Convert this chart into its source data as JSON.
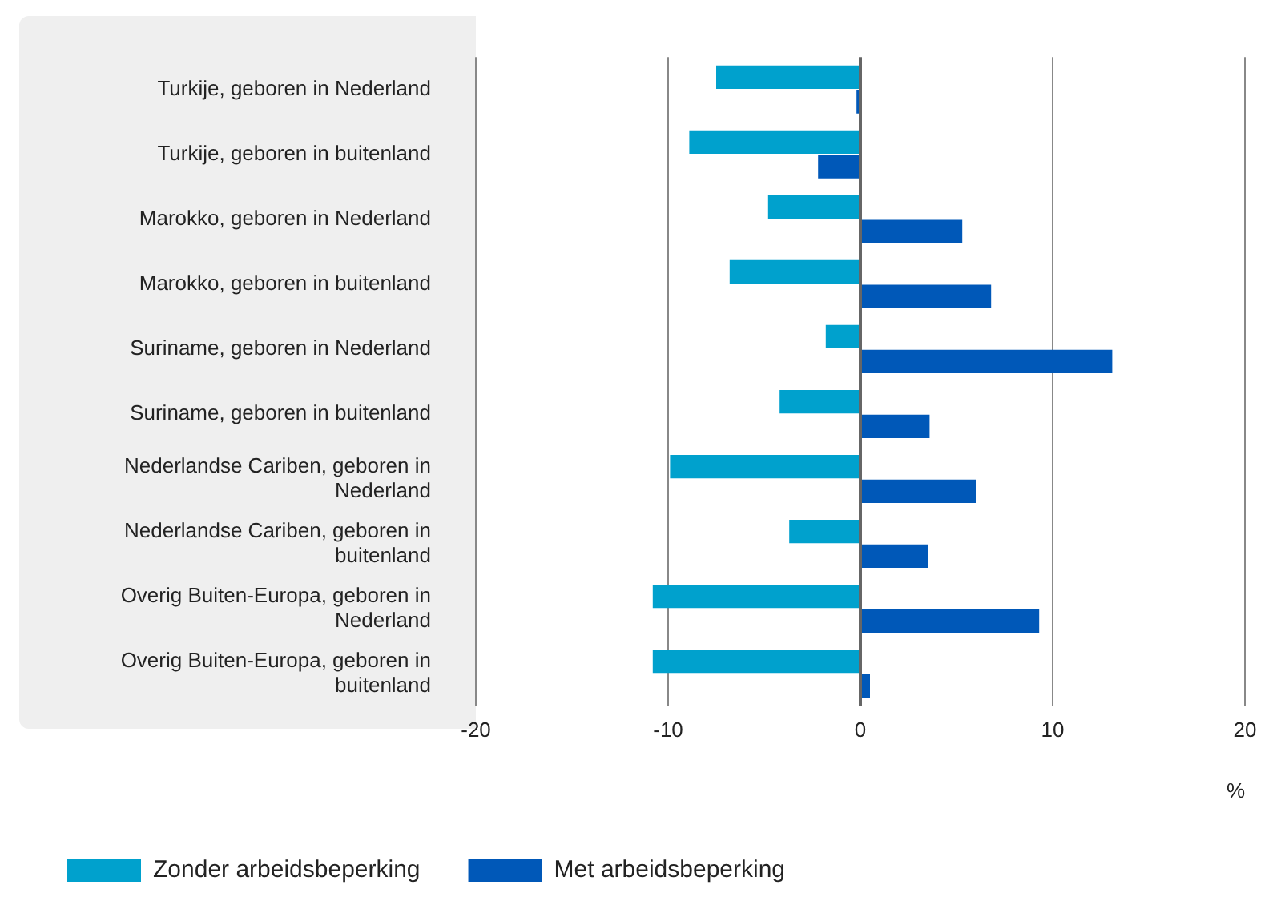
{
  "chart_data": {
    "type": "bar",
    "orientation": "horizontal",
    "xlabel": "%",
    "categories": [
      "Turkije, geboren in Nederland",
      "Turkije, geboren in buitenland",
      "Marokko, geboren in Nederland",
      "Marokko, geboren in buitenland",
      "Suriname, geboren in Nederland",
      "Suriname, geboren in buitenland",
      "Nederlandse Cariben, geboren in Nederland",
      "Nederlandse Cariben, geboren in buitenland",
      "Overig Buiten-Europa, geboren in Nederland",
      "Overig Buiten-Europa, geboren in buitenland"
    ],
    "series": [
      {
        "name": "Zonder arbeidsbeperking",
        "color": "#00a1cd",
        "values": [
          -7.5,
          -8.9,
          -4.8,
          -6.8,
          -1.8,
          -4.2,
          -9.9,
          -3.7,
          -10.8,
          -10.8
        ]
      },
      {
        "name": "Met arbeidsbeperking",
        "color": "#0058b8",
        "values": [
          -0.2,
          -2.2,
          5.3,
          6.8,
          13.1,
          3.6,
          6.0,
          3.5,
          9.3,
          0.5
        ]
      }
    ],
    "xlim": [
      -20,
      20
    ],
    "xticks": [
      -20,
      -10,
      0,
      10,
      20
    ],
    "grid": "x",
    "legend": "bottom"
  }
}
